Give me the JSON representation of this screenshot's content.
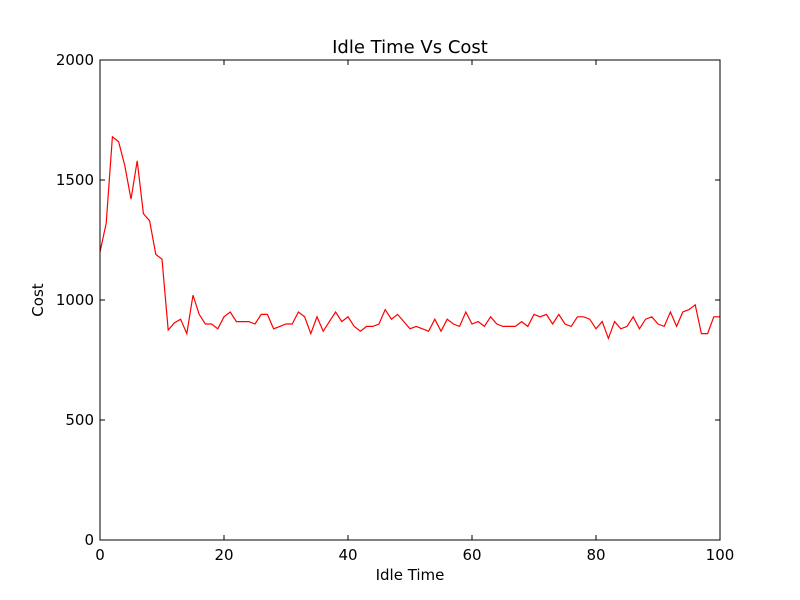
{
  "chart_data": {
    "type": "line",
    "title": "Idle Time Vs Cost",
    "xlabel": "Idle Time",
    "ylabel": "Cost",
    "xlim": [
      0,
      100
    ],
    "ylim": [
      0,
      2000
    ],
    "xticks": [
      0,
      20,
      40,
      60,
      80,
      100
    ],
    "yticks": [
      0,
      500,
      1000,
      1500,
      2000
    ],
    "grid": false,
    "series": [
      {
        "color": "#ff0000",
        "x": [
          0,
          1,
          2,
          3,
          4,
          5,
          6,
          7,
          8,
          9,
          10,
          11,
          12,
          13,
          14,
          15,
          16,
          17,
          18,
          19,
          20,
          21,
          22,
          23,
          24,
          25,
          26,
          27,
          28,
          29,
          30,
          31,
          32,
          33,
          34,
          35,
          36,
          37,
          38,
          39,
          40,
          41,
          42,
          43,
          44,
          45,
          46,
          47,
          48,
          49,
          50,
          51,
          52,
          53,
          54,
          55,
          56,
          57,
          58,
          59,
          60,
          61,
          62,
          63,
          64,
          65,
          66,
          67,
          68,
          69,
          70,
          71,
          72,
          73,
          74,
          75,
          76,
          77,
          78,
          79,
          80,
          81,
          82,
          83,
          84,
          85,
          86,
          87,
          88,
          89,
          90,
          91,
          92,
          93,
          94,
          95,
          96,
          97,
          98,
          99,
          100
        ],
        "y": [
          1200,
          1320,
          1680,
          1660,
          1560,
          1420,
          1580,
          1360,
          1330,
          1190,
          1170,
          875,
          905,
          920,
          860,
          1020,
          940,
          900,
          900,
          880,
          930,
          950,
          910,
          910,
          910,
          900,
          940,
          940,
          880,
          890,
          900,
          900,
          950,
          930,
          860,
          930,
          870,
          910,
          950,
          910,
          930,
          890,
          870,
          890,
          890,
          900,
          960,
          920,
          940,
          910,
          880,
          890,
          880,
          870,
          920,
          870,
          920,
          900,
          890,
          950,
          900,
          910,
          890,
          930,
          900,
          890,
          890,
          890,
          910,
          890,
          940,
          930,
          940,
          900,
          940,
          900,
          890,
          930,
          930,
          920,
          880,
          910,
          840,
          910,
          880,
          890,
          930,
          880,
          920,
          930,
          900,
          890,
          950,
          890,
          950,
          960,
          980,
          860,
          860,
          930,
          930
        ]
      }
    ]
  }
}
